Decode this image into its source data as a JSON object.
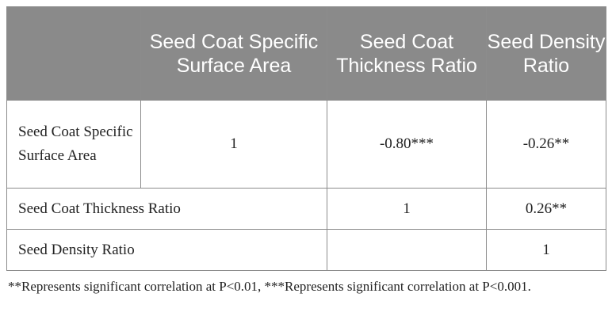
{
  "table": {
    "header": {
      "blank": "",
      "col_specific_surface_area": "Seed Coat Specific Surface Area",
      "col_thickness_ratio": "Seed Coat Thickness Ratio",
      "col_density_ratio": "Seed Density Ratio"
    },
    "rows": [
      {
        "label": "Seed Coat Specific Surface Area",
        "specific_surface_area": "1",
        "thickness_ratio": "-0.80***",
        "density_ratio": "-0.26**"
      },
      {
        "label": "Seed Coat Thickness Ratio",
        "specific_surface_area": "",
        "thickness_ratio": "1",
        "density_ratio": "0.26**"
      },
      {
        "label": "Seed Density Ratio",
        "specific_surface_area": "",
        "thickness_ratio": "",
        "density_ratio": "1"
      }
    ]
  },
  "footnote": "**Represents significant correlation at P<0.01, ***Represents significant correlation at P<0.001.",
  "colors": {
    "header_bg": "#8a8a8a",
    "header_text": "#ffffff",
    "border": "#8c8c8c",
    "body_text": "#222222"
  }
}
